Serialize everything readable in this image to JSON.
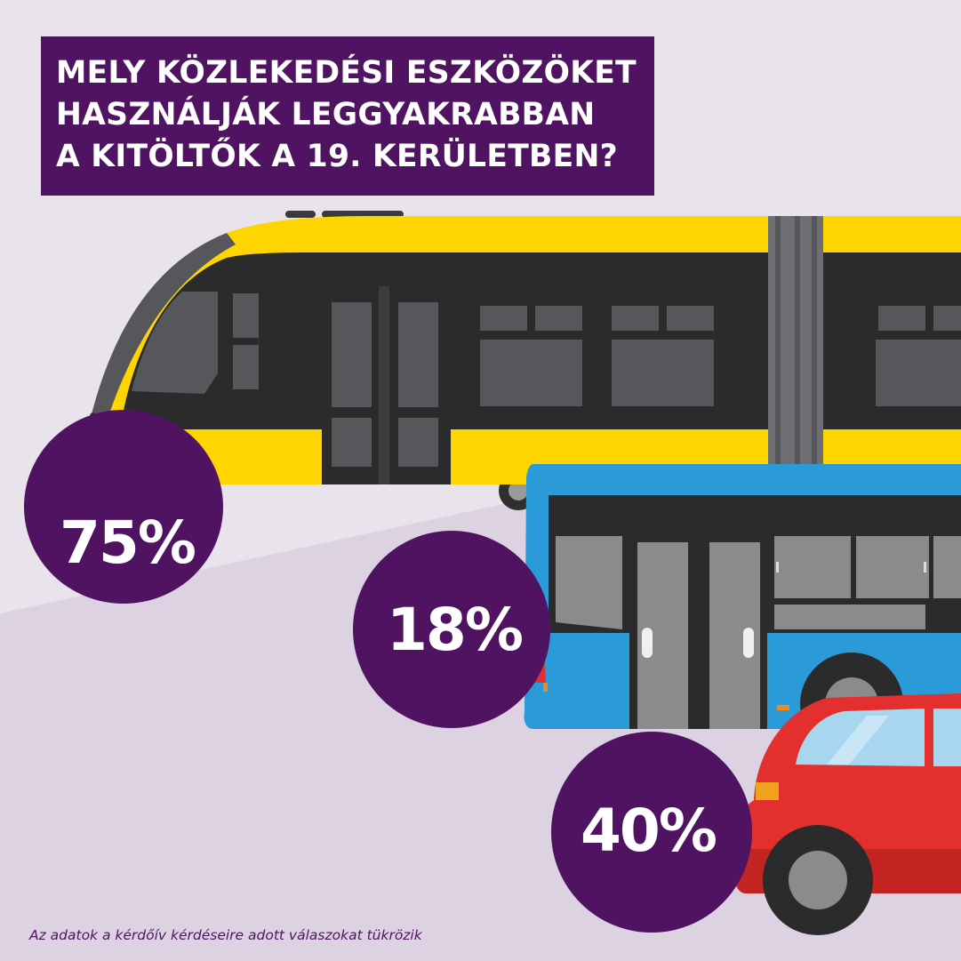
{
  "title": {
    "lines": [
      "MELY KÖZLEKEDÉSI ESZKÖZÖKET",
      "HASZNÁLJÁK LEGGYAKRABBAN",
      "A KITÖLTŐK A 19. KERÜLETBEN?"
    ]
  },
  "stats": [
    {
      "label": "75%",
      "value": 75,
      "vehicle": "tram-icon"
    },
    {
      "label": "18%",
      "value": 18,
      "vehicle": "bus-icon"
    },
    {
      "label": "40%",
      "value": 40,
      "vehicle": "car-icon"
    }
  ],
  "footnote": "Az adatok a kérdőív kérdéseire adott válaszokat tükrözik",
  "colors": {
    "accent_purple": "#4f1361",
    "tram_yellow": "#ffd500",
    "bus_blue": "#2b9ad8",
    "car_red": "#e3302f",
    "background": "#e9e3ec"
  }
}
